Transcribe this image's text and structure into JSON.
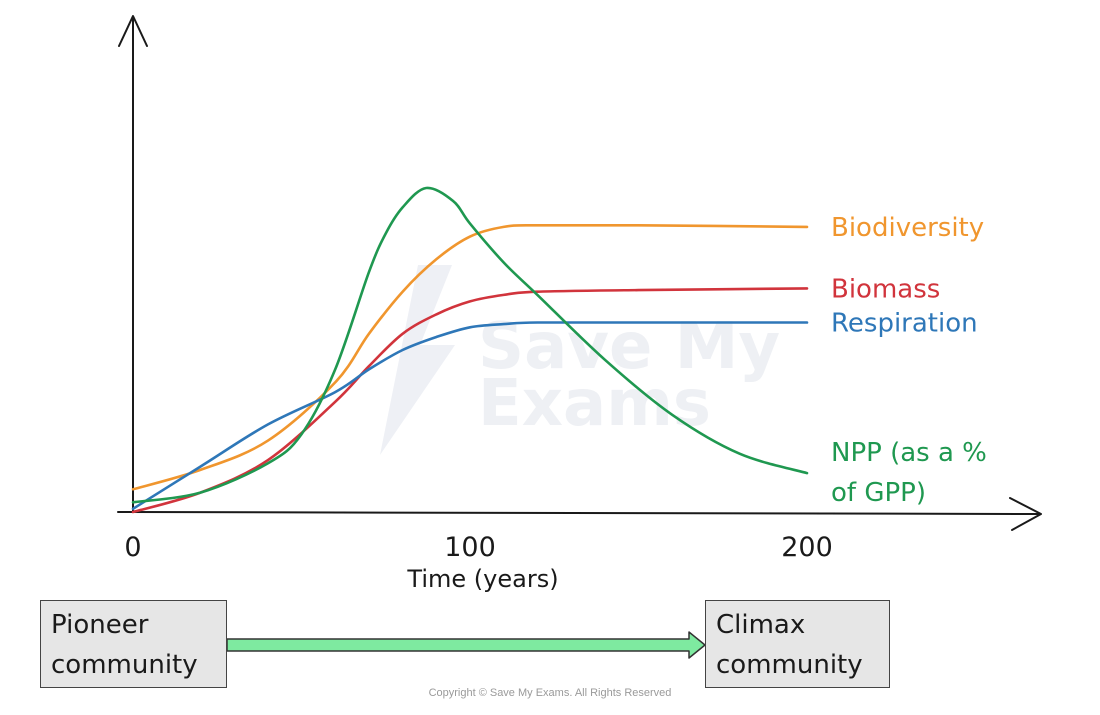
{
  "chart_data": {
    "type": "line",
    "xlabel": "Time (years)",
    "ylabel": "",
    "xlim": [
      0,
      250
    ],
    "ylim": [
      0,
      100
    ],
    "xticks": [
      0,
      100,
      200
    ],
    "grid": false,
    "series": [
      {
        "name": "Biodiversity",
        "color": "#f0962e",
        "x": [
          0,
          20,
          40,
          60,
          70,
          80,
          90,
          100,
          110,
          120,
          150,
          200
        ],
        "y": [
          7,
          13,
          22,
          40,
          55,
          68,
          78,
          85,
          88,
          88.5,
          88.5,
          88
        ]
      },
      {
        "name": "Biomass",
        "color": "#d1343c",
        "x": [
          0,
          20,
          40,
          60,
          70,
          80,
          90,
          100,
          110,
          120,
          150,
          200
        ],
        "y": [
          0,
          6,
          16,
          34,
          45,
          55,
          61,
          65,
          67,
          68,
          68.5,
          69
        ]
      },
      {
        "name": "Respiration",
        "color": "#2e77b8",
        "x": [
          0,
          20,
          40,
          60,
          70,
          80,
          90,
          100,
          110,
          120,
          150,
          200
        ],
        "y": [
          1,
          14,
          27,
          37,
          44,
          50,
          54,
          57,
          58,
          58.5,
          58.5,
          58.5
        ]
      },
      {
        "name": "NPP (as a % of GPP)",
        "color": "#1f9850",
        "x": [
          0,
          20,
          40,
          50,
          60,
          70,
          75,
          80,
          87,
          95,
          100,
          110,
          120,
          140,
          160,
          180,
          200
        ],
        "y": [
          3,
          6,
          15,
          24,
          44,
          74,
          86,
          94,
          100,
          96,
          89,
          77,
          67,
          47,
          30,
          18,
          12
        ]
      }
    ]
  },
  "watermark": {
    "line1": "Save My",
    "line2": "Exams"
  },
  "flow": {
    "start": [
      "Pioneer",
      "community"
    ],
    "end": [
      "Climax",
      "community"
    ],
    "arrow_color": "#7eeaa0"
  },
  "copyright": "Copyright © Save My Exams. All Rights Reserved"
}
